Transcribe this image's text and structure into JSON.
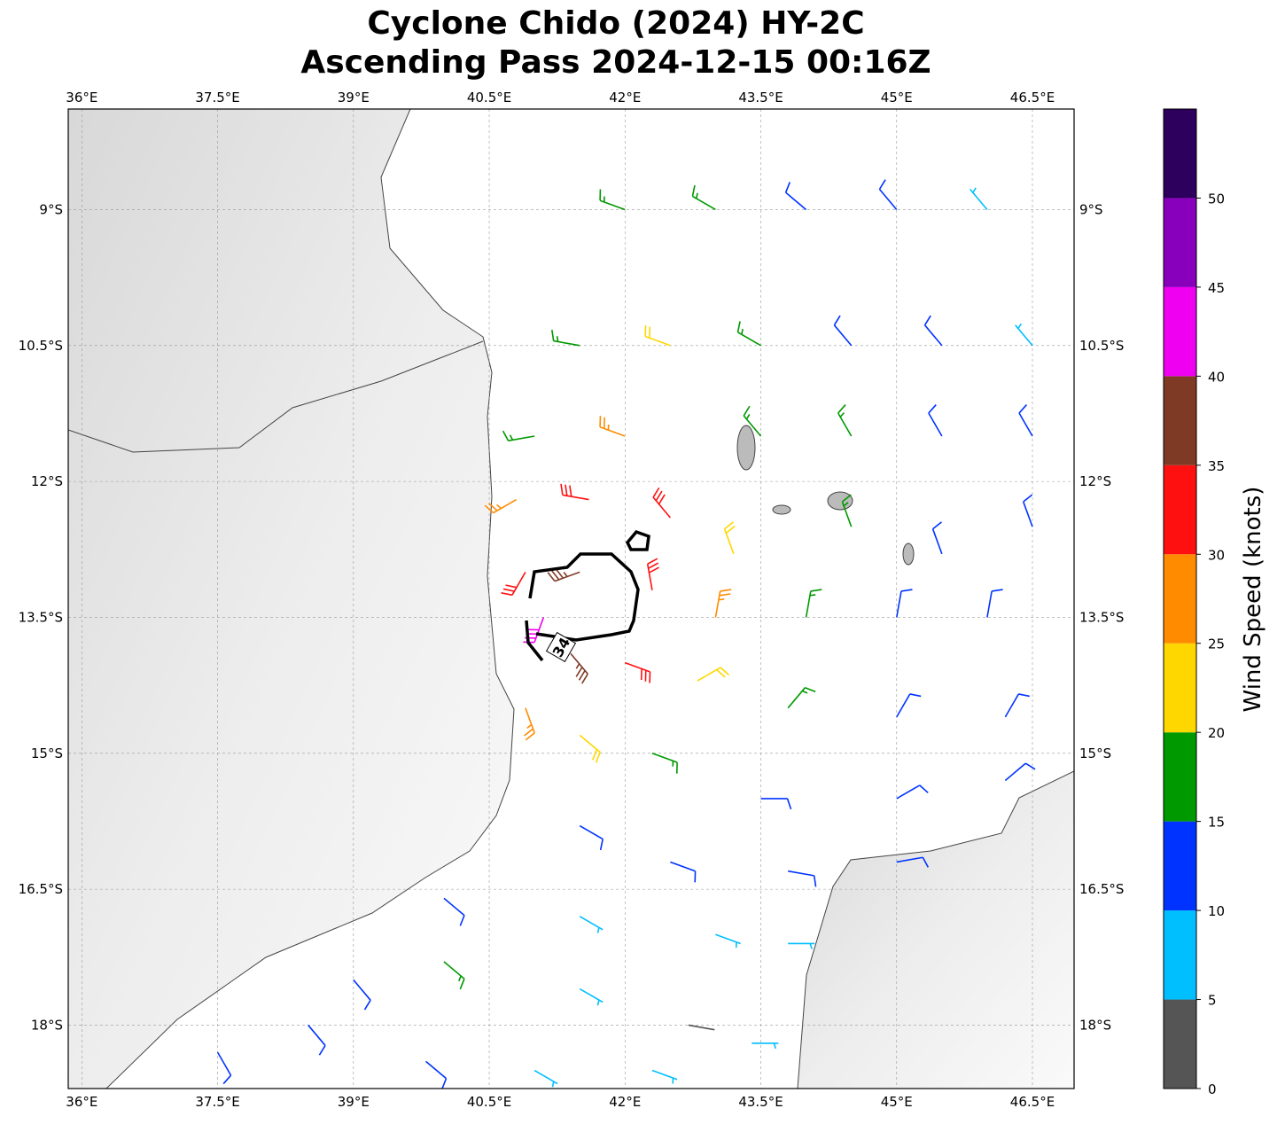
{
  "chart_data": {
    "type": "wind-barb-map",
    "title": "Cyclone Chido (2024) HY-2C",
    "subtitle": "Ascending Pass 2024-12-15 00:16Z",
    "xlim": [
      35.85,
      46.96
    ],
    "ylim": [
      -18.7,
      -7.89
    ],
    "xticks": [
      {
        "value": 36,
        "label": "36°E"
      },
      {
        "value": 37.5,
        "label": "37.5°E"
      },
      {
        "value": 39,
        "label": "39°E"
      },
      {
        "value": 40.5,
        "label": "40.5°E"
      },
      {
        "value": 42,
        "label": "42°E"
      },
      {
        "value": 43.5,
        "label": "43.5°E"
      },
      {
        "value": 45,
        "label": "45°E"
      },
      {
        "value": 46.5,
        "label": "46.5°E"
      }
    ],
    "yticks": [
      {
        "value": -9,
        "label": "9°S"
      },
      {
        "value": -10.5,
        "label": "10.5°S"
      },
      {
        "value": -12,
        "label": "12°S"
      },
      {
        "value": -13.5,
        "label": "13.5°S"
      },
      {
        "value": -15,
        "label": "15°S"
      },
      {
        "value": -16.5,
        "label": "16.5°S"
      },
      {
        "value": -18,
        "label": "18°S"
      }
    ],
    "grid": true,
    "colorbar": {
      "label": "Wind Speed (knots)",
      "lim": [
        0,
        55
      ],
      "ticks": [
        0,
        5,
        10,
        15,
        20,
        25,
        30,
        35,
        40,
        45,
        50
      ],
      "colors": [
        "#555555",
        "#00bfff",
        "#0033ff",
        "#009900",
        "#ffd700",
        "#ff8c00",
        "#ff1010",
        "#7f3a25",
        "#f000f0",
        "#8800bb",
        "#2d005d"
      ]
    },
    "contour_label": "34",
    "barbs": {
      "lon": [
        42,
        43,
        44,
        45,
        46,
        41.5,
        42.5,
        43.5,
        44.5,
        45.5,
        46.5,
        41,
        42,
        43.5,
        44.5,
        45.5,
        46.5,
        40.8,
        41.6,
        42.5,
        43.2,
        44.5,
        45.5,
        46.5,
        40.9,
        41.5,
        42.3,
        43,
        44,
        45,
        46,
        41.1,
        41.4,
        42,
        42.8,
        43.8,
        45,
        46.2,
        40.9,
        41.5,
        42.3,
        43.5,
        45,
        46.2,
        41.5,
        42.5,
        43.8,
        45,
        40,
        41.5,
        43,
        43.8,
        39,
        40,
        41.5,
        42.7,
        43.4,
        37.5,
        38.5,
        39.8,
        41,
        42.3
      ],
      "lat": [
        -9,
        -9,
        -9,
        -9,
        -9,
        -10.5,
        -10.5,
        -10.5,
        -10.5,
        -10.5,
        -10.5,
        -11.5,
        -11.5,
        -11.5,
        -11.5,
        -11.5,
        -11.5,
        -12.2,
        -12.2,
        -12.4,
        -12.8,
        -12.5,
        -12.8,
        -12.5,
        -13,
        -13,
        -13.2,
        -13.5,
        -13.5,
        -13.5,
        -13.5,
        -13.5,
        -13.9,
        -14,
        -14.2,
        -14.5,
        -14.6,
        -14.6,
        -14.5,
        -14.8,
        -15,
        -15.5,
        -15.5,
        -15.3,
        -15.8,
        -16.2,
        -16.3,
        -16.2,
        -16.6,
        -16.8,
        -17,
        -17.1,
        -17.5,
        -17.3,
        -17.6,
        -18,
        -18.2,
        -18.3,
        -18,
        -18.4,
        -18.5,
        -18.5
      ],
      "speed": [
        17,
        15,
        12,
        11,
        8,
        17,
        20,
        17,
        13,
        12,
        8,
        17,
        25,
        17,
        16,
        12,
        11,
        27,
        32,
        30,
        22,
        17,
        13,
        12,
        30,
        37,
        33,
        25,
        18,
        14,
        13,
        42,
        35,
        33,
        24,
        17,
        13,
        12,
        28,
        22,
        19,
        14,
        12,
        11,
        13,
        12,
        11,
        11,
        12,
        9,
        8,
        7,
        12,
        16,
        9,
        4,
        5,
        12,
        13,
        14,
        9,
        7
      ],
      "dir": [
        290,
        300,
        310,
        320,
        320,
        280,
        290,
        300,
        320,
        320,
        320,
        260,
        290,
        320,
        330,
        330,
        330,
        240,
        280,
        320,
        340,
        340,
        340,
        340,
        210,
        250,
        350,
        10,
        10,
        10,
        10,
        200,
        140,
        110,
        60,
        40,
        30,
        30,
        160,
        130,
        110,
        90,
        60,
        50,
        120,
        110,
        100,
        80,
        130,
        120,
        110,
        90,
        140,
        130,
        120,
        100,
        90,
        150,
        140,
        130,
        120,
        110
      ]
    }
  }
}
